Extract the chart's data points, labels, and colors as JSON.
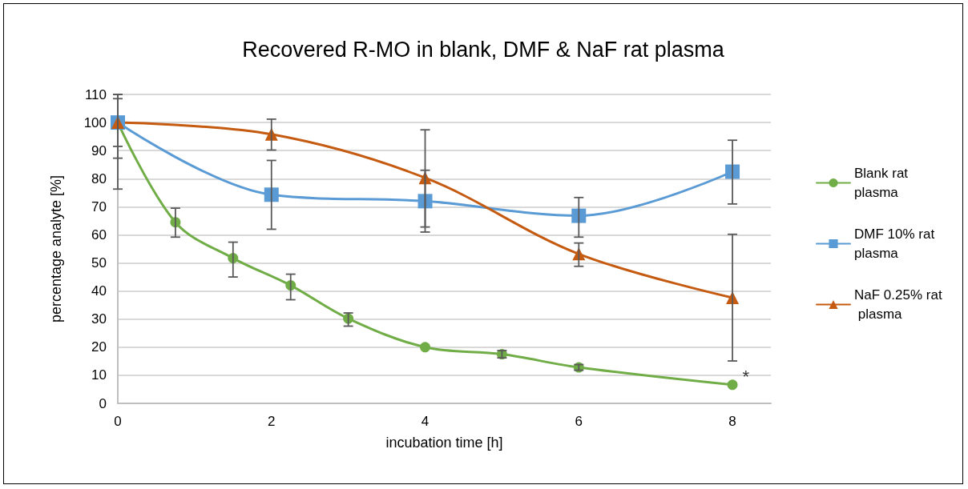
{
  "chart_data": {
    "type": "line",
    "title": "Recovered R-MO in blank, DMF & NaF rat plasma",
    "xlabel": "incubation time [h]",
    "ylabel": "percentage analyte [%]",
    "xlim": [
      0,
      8.5
    ],
    "xticks": [
      0,
      2,
      4,
      6,
      8
    ],
    "ylim": [
      0,
      110
    ],
    "yticks": [
      0,
      10,
      20,
      30,
      40,
      50,
      60,
      70,
      80,
      90,
      100,
      110
    ],
    "grid": "y",
    "legend": "right",
    "series": [
      {
        "name": "Blank rat plasma",
        "color": "#70ad47",
        "marker": "circle",
        "x": [
          0,
          0.75,
          1.5,
          2.25,
          3,
          4,
          5,
          6,
          8
        ],
        "values": [
          100,
          64.5,
          51.7,
          42,
          30.2,
          20,
          17.5,
          12.8,
          6.6
        ],
        "errors": [
          [
            91.5,
            108.5
          ],
          [
            59.2,
            69.5
          ],
          [
            45,
            57.4
          ],
          [
            36.9,
            46
          ],
          [
            27.5,
            32.2
          ],
          null,
          [
            16.2,
            18.8
          ],
          [
            11.8,
            13.8
          ],
          null
        ]
      },
      {
        "name": "DMF 10% rat plasma",
        "color": "#5b9bd5",
        "marker": "square",
        "x": [
          0,
          2,
          4,
          6,
          8
        ],
        "values": [
          100,
          74.3,
          72,
          66.8,
          82.5
        ],
        "errors": [
          [
            76.3,
            110
          ],
          [
            62,
            86.5
          ],
          [
            61,
            83
          ],
          [
            59.2,
            73.3
          ],
          [
            71,
            93.7
          ]
        ]
      },
      {
        "name": "NaF 0.25% rat plasma",
        "color": "#c55a11",
        "marker": "triangle",
        "x": [
          0,
          2,
          4,
          6,
          8
        ],
        "values": [
          100,
          95.8,
          80.3,
          53.2,
          37.6
        ],
        "errors": [
          [
            87.3,
            110
          ],
          [
            90.2,
            101.2
          ],
          [
            62.8,
            97.4
          ],
          [
            48.8,
            57.1
          ],
          [
            15.1,
            60.2
          ]
        ]
      }
    ],
    "annotations": [
      {
        "text": "*",
        "x": 8,
        "y": 6.6
      }
    ]
  }
}
